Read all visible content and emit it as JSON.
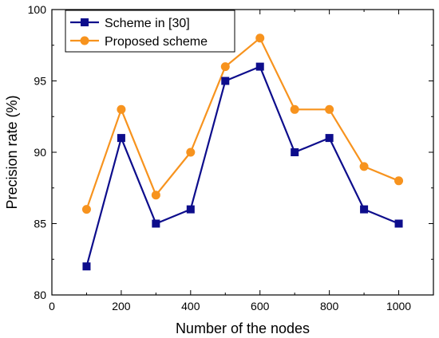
{
  "chart_data": {
    "type": "line",
    "xlabel": "Number of the nodes",
    "ylabel": "Precision rate (%)",
    "xlim": [
      0,
      1100
    ],
    "ylim": [
      80,
      100
    ],
    "xticks": [
      0,
      200,
      400,
      600,
      800,
      1000
    ],
    "yticks": [
      80,
      85,
      90,
      95,
      100
    ],
    "grid": false,
    "legend_position": "top-left",
    "x": [
      100,
      200,
      300,
      400,
      500,
      600,
      700,
      800,
      900,
      1000
    ],
    "series": [
      {
        "name": "Scheme in [30]",
        "color": "#0d0d8c",
        "marker": "square",
        "values": [
          82,
          91,
          85,
          86,
          95,
          96,
          90,
          91,
          86,
          85
        ]
      },
      {
        "name": "Proposed scheme",
        "color": "#f7931e",
        "marker": "circle",
        "values": [
          86,
          93,
          87,
          90,
          96,
          98,
          93,
          93,
          89,
          88
        ]
      }
    ]
  }
}
